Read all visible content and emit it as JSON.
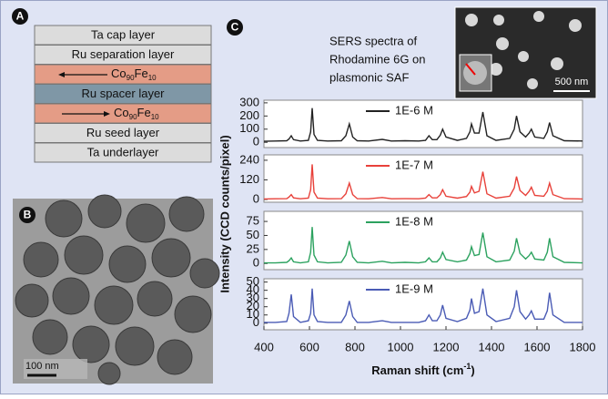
{
  "panel_a": {
    "label": "A",
    "layers": [
      "Ta cap layer",
      "Ru separation layer",
      [
        "Co",
        "90",
        "Fe",
        "10"
      ],
      "Ru spacer layer",
      [
        "Co",
        "90",
        "Fe",
        "10"
      ],
      "Ru seed layer",
      "Ta underlayer"
    ]
  },
  "panel_b": {
    "label": "B",
    "scale": "100 nm"
  },
  "panel_c": {
    "label": "C",
    "caption": [
      "SERS spectra of",
      "Rhodamine 6G on",
      "plasmonic SAF"
    ],
    "inset_scale": "500 nm",
    "ylabel": "Intensity (CCD counts/pixel)",
    "xlabel": [
      "Raman shift (cm",
      "-1",
      ")"
    ]
  },
  "chart_data": [
    {
      "type": "line",
      "xlim": [
        400,
        1800
      ],
      "ylim": [
        -40,
        320
      ],
      "yticks": [
        0,
        100,
        200,
        300
      ],
      "x": [
        400,
        450,
        500,
        510,
        520,
        530,
        560,
        595,
        605,
        612,
        620,
        635,
        680,
        740,
        760,
        775,
        790,
        810,
        860,
        920,
        960,
        1020,
        1080,
        1110,
        1125,
        1140,
        1160,
        1175,
        1185,
        1200,
        1250,
        1290,
        1305,
        1312,
        1325,
        1345,
        1362,
        1380,
        1420,
        1480,
        1500,
        1510,
        1525,
        1550,
        1565,
        1575,
        1590,
        1630,
        1645,
        1655,
        1670,
        1720,
        1800
      ],
      "series": [
        {
          "name": "1E-6 M",
          "color": "#222222",
          "values": [
            8,
            10,
            12,
            25,
            50,
            20,
            10,
            15,
            80,
            260,
            60,
            15,
            10,
            12,
            50,
            140,
            40,
            12,
            10,
            22,
            10,
            12,
            10,
            15,
            50,
            20,
            20,
            55,
            100,
            40,
            15,
            30,
            80,
            140,
            70,
            70,
            230,
            50,
            15,
            30,
            100,
            200,
            80,
            40,
            70,
            100,
            40,
            30,
            80,
            150,
            50,
            12,
            10
          ]
        }
      ]
    },
    {
      "type": "line",
      "xlim": [
        400,
        1800
      ],
      "ylim": [
        -17,
        273
      ],
      "yticks": [
        0,
        120,
        240
      ],
      "x": [
        400,
        450,
        500,
        510,
        520,
        530,
        560,
        595,
        605,
        612,
        620,
        635,
        680,
        740,
        760,
        775,
        790,
        810,
        860,
        920,
        960,
        1020,
        1080,
        1110,
        1125,
        1140,
        1160,
        1175,
        1185,
        1200,
        1250,
        1290,
        1305,
        1312,
        1325,
        1345,
        1362,
        1380,
        1420,
        1480,
        1500,
        1510,
        1525,
        1550,
        1565,
        1575,
        1590,
        1630,
        1645,
        1655,
        1670,
        1720,
        1800
      ],
      "series": [
        {
          "name": "1E-7 M",
          "color": "#e8413a",
          "values": [
            3,
            4,
            5,
            15,
            30,
            10,
            4,
            8,
            60,
            215,
            45,
            8,
            4,
            5,
            35,
            100,
            30,
            5,
            4,
            12,
            4,
            5,
            4,
            8,
            30,
            10,
            10,
            30,
            60,
            20,
            8,
            18,
            45,
            80,
            40,
            50,
            170,
            35,
            8,
            20,
            70,
            140,
            55,
            25,
            50,
            75,
            25,
            20,
            50,
            100,
            30,
            5,
            3
          ]
        }
      ]
    },
    {
      "type": "line",
      "xlim": [
        400,
        1800
      ],
      "ylim": [
        -11,
        93
      ],
      "yticks": [
        0,
        25,
        50,
        75
      ],
      "x": [
        400,
        450,
        500,
        510,
        520,
        530,
        560,
        595,
        605,
        612,
        620,
        635,
        680,
        740,
        760,
        775,
        790,
        810,
        860,
        920,
        960,
        1020,
        1080,
        1110,
        1125,
        1140,
        1160,
        1175,
        1185,
        1200,
        1250,
        1290,
        1305,
        1312,
        1325,
        1345,
        1362,
        1380,
        1420,
        1480,
        1500,
        1510,
        1525,
        1550,
        1565,
        1575,
        1590,
        1630,
        1645,
        1655,
        1670,
        1720,
        1800
      ],
      "series": [
        {
          "name": "1E-8 M",
          "color": "#2ca25f",
          "values": [
            1,
            1,
            2,
            5,
            10,
            3,
            1,
            3,
            20,
            65,
            15,
            3,
            1,
            2,
            15,
            40,
            12,
            2,
            1,
            4,
            1,
            2,
            1,
            3,
            10,
            3,
            3,
            10,
            20,
            7,
            3,
            6,
            18,
            30,
            14,
            16,
            55,
            12,
            3,
            6,
            22,
            45,
            18,
            8,
            14,
            20,
            8,
            6,
            20,
            45,
            12,
            2,
            1
          ]
        }
      ]
    },
    {
      "type": "line",
      "xlim": [
        400,
        1800
      ],
      "ylim": [
        -8,
        54
      ],
      "yticks": [
        0,
        10,
        20,
        30,
        40,
        50
      ],
      "xticks": [
        400,
        600,
        800,
        1000,
        1200,
        1400,
        1600,
        1800
      ],
      "x": [
        400,
        450,
        500,
        510,
        520,
        530,
        560,
        595,
        605,
        612,
        620,
        635,
        680,
        740,
        760,
        775,
        790,
        810,
        860,
        920,
        960,
        1020,
        1080,
        1110,
        1125,
        1140,
        1160,
        1175,
        1185,
        1200,
        1250,
        1290,
        1305,
        1312,
        1325,
        1345,
        1362,
        1380,
        1420,
        1480,
        1500,
        1510,
        1525,
        1550,
        1565,
        1575,
        1590,
        1630,
        1645,
        1655,
        1670,
        1720,
        1800
      ],
      "series": [
        {
          "name": "1E-9 M",
          "color": "#4a5bb5",
          "values": [
            1,
            1,
            2,
            12,
            35,
            8,
            1,
            3,
            12,
            42,
            10,
            2,
            1,
            1,
            10,
            27,
            8,
            1,
            1,
            3,
            1,
            1,
            1,
            3,
            10,
            3,
            3,
            10,
            22,
            6,
            2,
            6,
            16,
            30,
            12,
            14,
            42,
            10,
            2,
            6,
            20,
            40,
            14,
            5,
            10,
            15,
            5,
            5,
            15,
            37,
            10,
            1,
            1
          ]
        }
      ]
    }
  ]
}
